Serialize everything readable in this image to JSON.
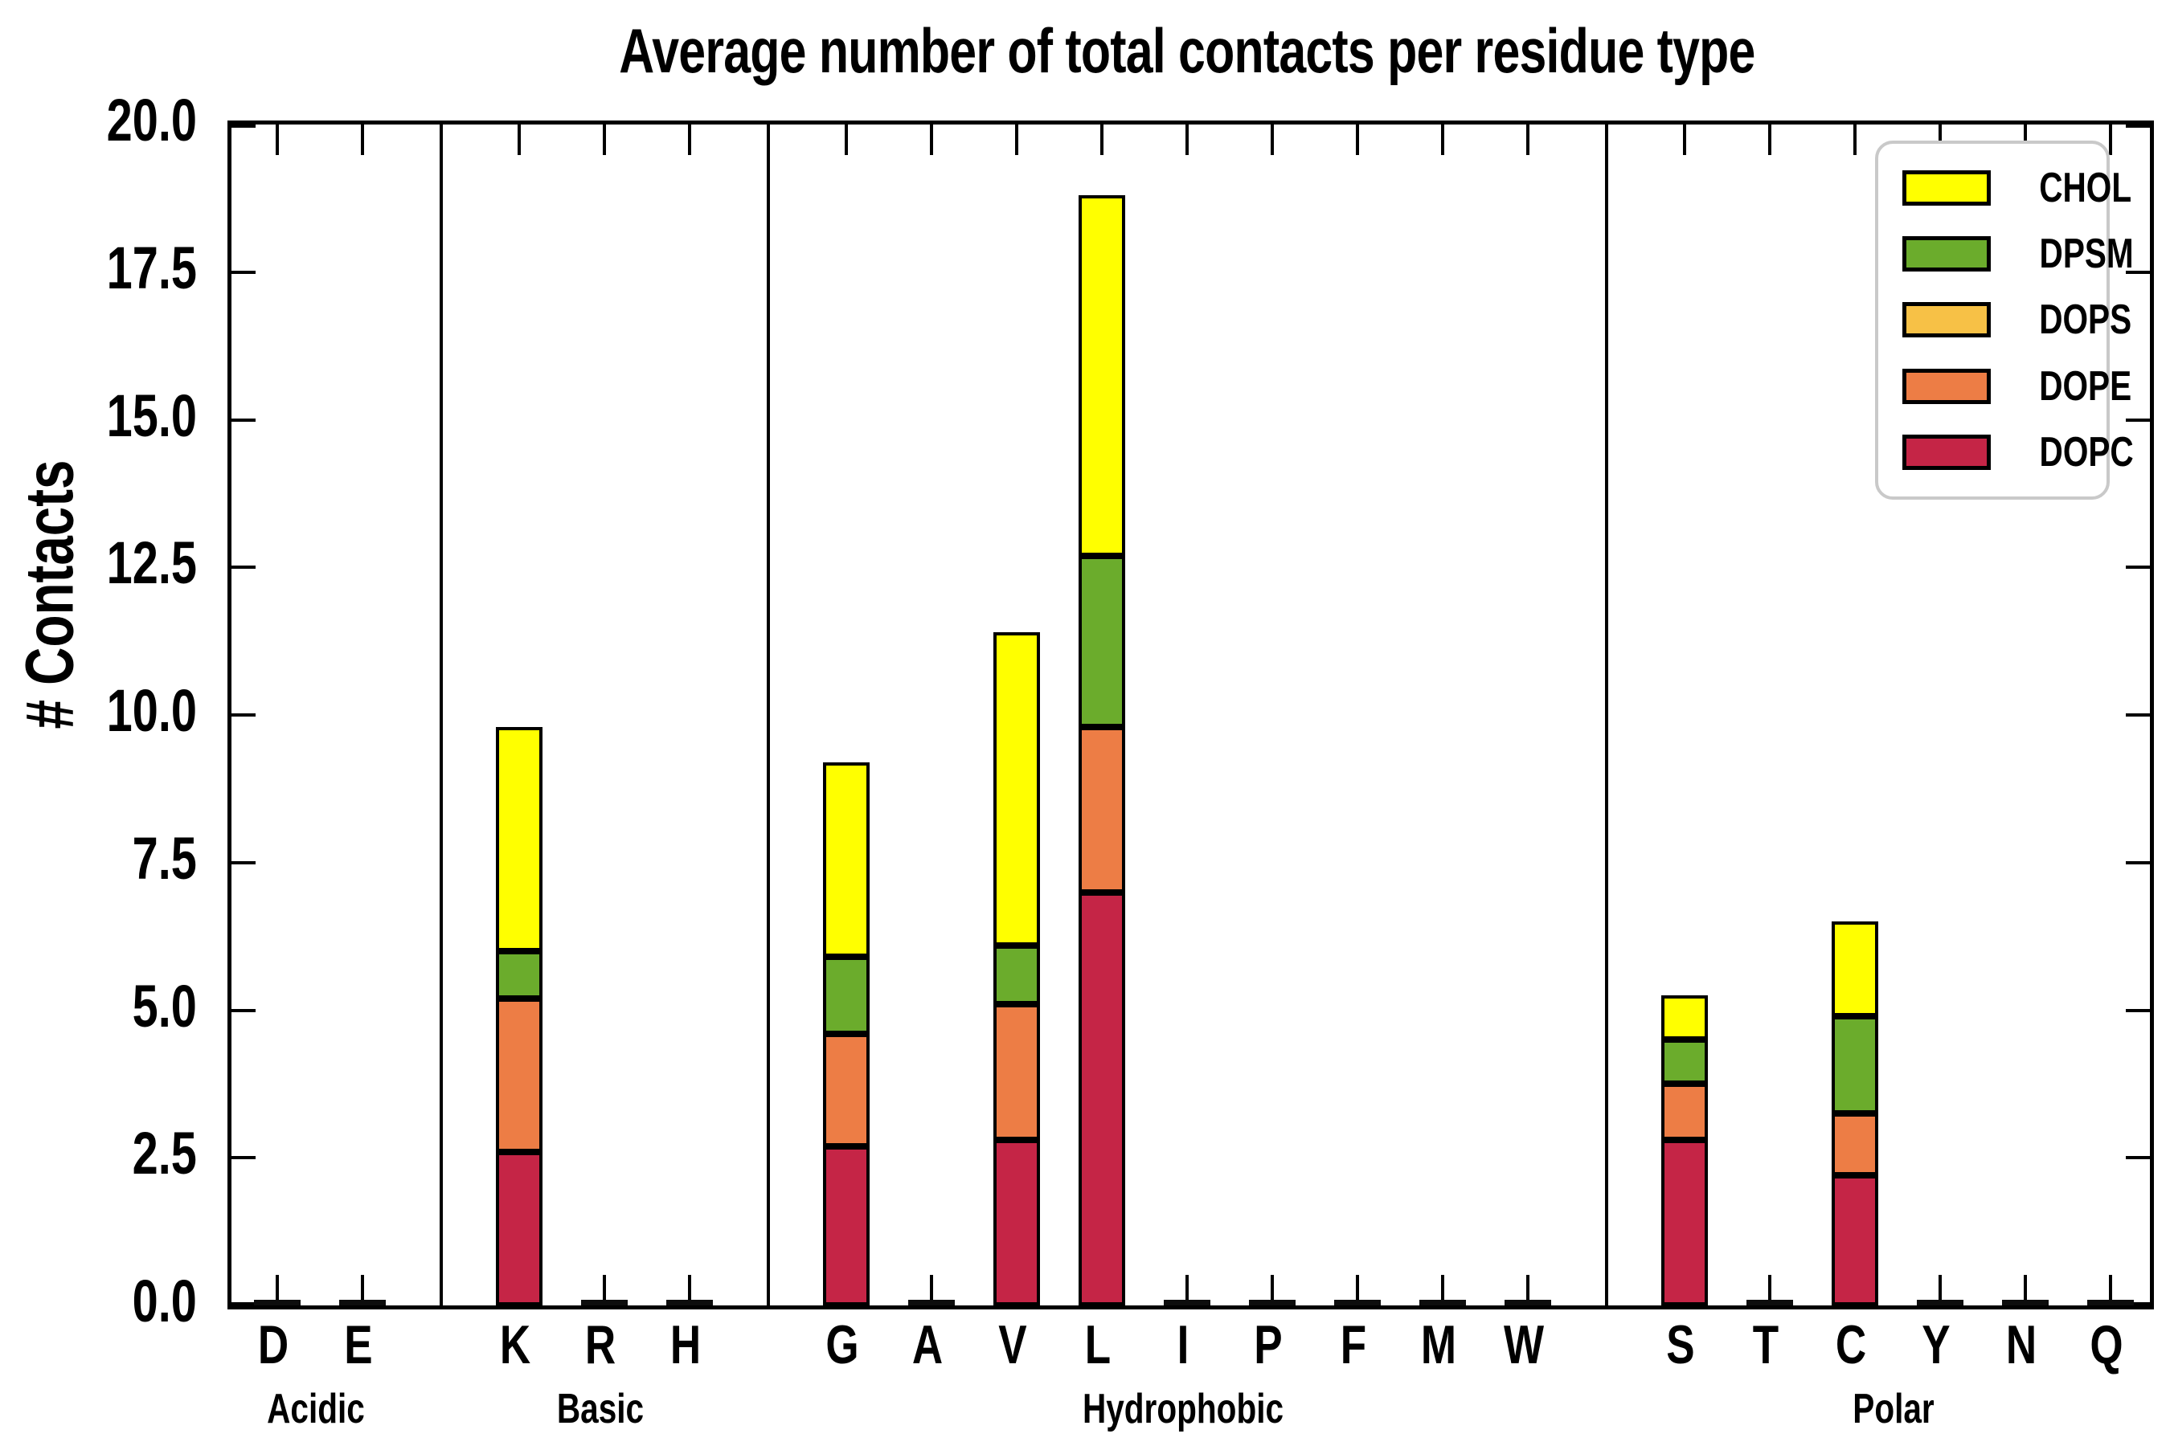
{
  "chart_data": {
    "type": "bar",
    "stacked": true,
    "title": "Average number of total contacts per residue type",
    "ylabel": "# Contacts",
    "ylim": [
      0,
      20
    ],
    "yticks": [
      0,
      2.5,
      5,
      7.5,
      10,
      12.5,
      15,
      17.5,
      20
    ],
    "ytick_format_decimals": 1,
    "grid": false,
    "legend_position": "upper right",
    "legend_order": [
      "CHOL",
      "DPSM",
      "DOPS",
      "DOPE",
      "DOPC"
    ],
    "groups": [
      {
        "label": "Acidic",
        "residues": [
          "D",
          "E"
        ]
      },
      {
        "label": "Basic",
        "residues": [
          "K",
          "R",
          "H"
        ]
      },
      {
        "label": "Hydrophobic",
        "residues": [
          "G",
          "A",
          "V",
          "L",
          "I",
          "P",
          "F",
          "M",
          "W"
        ]
      },
      {
        "label": "Polar",
        "residues": [
          "S",
          "T",
          "C",
          "Y",
          "N",
          "Q"
        ]
      }
    ],
    "categories": [
      "D",
      "E",
      "K",
      "R",
      "H",
      "G",
      "A",
      "V",
      "L",
      "I",
      "P",
      "F",
      "M",
      "W",
      "S",
      "T",
      "C",
      "Y",
      "N",
      "Q"
    ],
    "series": [
      {
        "name": "DOPC",
        "color": "#C52546",
        "values": [
          0.05,
          0.05,
          2.6,
          0.05,
          0.05,
          2.7,
          0.05,
          2.8,
          7.0,
          0.05,
          0.05,
          0.05,
          0.05,
          0.05,
          2.8,
          0.05,
          2.2,
          0.05,
          0.05,
          0.05
        ]
      },
      {
        "name": "DOPE",
        "color": "#ED7D45",
        "values": [
          0,
          0,
          2.6,
          0,
          0,
          1.9,
          0,
          2.3,
          2.8,
          0,
          0,
          0,
          0,
          0,
          0.95,
          0,
          1.05,
          0,
          0,
          0
        ]
      },
      {
        "name": "DOPS",
        "color": "#F7C146",
        "values": [
          0,
          0,
          0,
          0,
          0,
          0,
          0,
          0,
          0,
          0,
          0,
          0,
          0,
          0,
          0,
          0,
          0,
          0,
          0,
          0
        ]
      },
      {
        "name": "DPSM",
        "color": "#6BAC2C",
        "values": [
          0,
          0,
          0.8,
          0,
          0,
          1.3,
          0,
          1.0,
          2.9,
          0,
          0,
          0,
          0,
          0,
          0.75,
          0,
          1.65,
          0,
          0,
          0
        ]
      },
      {
        "name": "CHOL",
        "color": "#FFFF00",
        "values": [
          0,
          0,
          3.8,
          0,
          0,
          3.3,
          0,
          5.3,
          6.1,
          0,
          0,
          0,
          0,
          0,
          0.75,
          0,
          1.6,
          0,
          0,
          0
        ]
      }
    ],
    "bar_totals": {
      "K": 9.8,
      "G": 9.2,
      "V": 11.4,
      "L": 18.8,
      "S": 5.25,
      "C": 6.5
    }
  }
}
